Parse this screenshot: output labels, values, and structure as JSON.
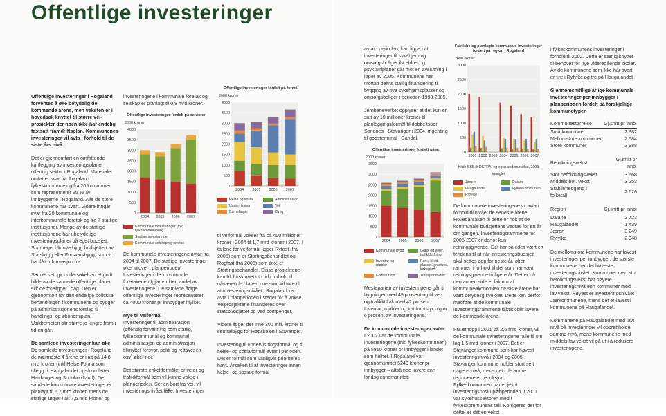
{
  "document": {
    "title": "Offentlige investeringer",
    "page_numbers": [
      "10",
      "11"
    ],
    "columns": [
      [
        "Offentlige investeringer i Rogaland forventes å øke betydelig de kommende årene, men veksten er i hovedsak knyttet til større vei-prosjekter der noen ikke har endelig fastsatt framdriftsplan. Kommunenes investeringer vil avta i forhold til de siste års nivå.",
        "Det er gjennomført en omfattende kartlegging av investeringsplaner i offentlig sektor i Rogaland. Materialet omfatter svar fra Rogaland fylkeskommune og fra 20 kommuner som representerer 95 % av innbyggerne i Rogaland. Alle de store kommunene har svart. Videre inngår svar fra 20 kommunale og interkommunale foretak og fra 7 statlige institusjoner. Mange av de statlige institusjonene har ubetydelige investeringsplaner på eget budsjett. Som regel blir nye bygg budsjettert av Statsbygg eller Forsvarsbygg, som vi har fått informasjon fra.",
        "Samlet sett gir undersøkelsen et godt bilde av de samlede offentlige planer slik de foreligger i dag. Den er gjennomført før den endelige politiske behandlingen i kommunene og bygger på administrasjonens forslag til handlings- og økonomiplan. Usikkerheten blir større jo lengre fram i tid en går.",
        "De samlede investeringer kan øke",
        "De samlede investeringer i Rogaland de nærmeste 4 årene er i alt på 14,8 mrd kroner (inkl Helse Fonna som i tillegg til Haugalandet også omfatter Hardanger og Sunnhordland). De samlede kommunale investeringer er planlagt til 6,7 mrd kroner, mens de statlige utgjør i alt 7,5 mrd kroner og"
      ],
      [
        "investeringene i kommunale foretak og selskap er planlagt til 0,8 mrd kroner.",
        "De kommunale investeringene avtar fra 2004 til 2007. De statlige investeringer øker utover i planperioden. Investeringer i de kommunale foretakene utgjør en liten andel av investeringene. De samlede årlige offentlige investeringer representerer ca 4000 kroner pr innbygger i fylket.",
        "Mye til veiformål",
        "Investeringer til administrasjon (offentlig forvaltning som statlig, fylkeskommunal og kommunal administrasjon og administrasjon tilknyttet forsvar, politi og rettsvesen osv) øker noe.",
        "Det største enkeltformålet er veier og trafikkformål som vil kunne vokse i planperioden. Ser en bort fra vei, vil investeringsnivået falle. Investeringer"
      ],
      [
        "til veiformål vokser fra ca 400 millioner kroner i 2004 til 1,7 mrd kroner i 2007. I tallene for veiformål ligger Ryfast (fra 2005) som er Stortingsbehandlet og Rogfast (fra 2006) som ikke er Stortingsbehandlet. Disse prosjektene kan bli forskjøvet ut i tid i forhold til nåværende planer, noe som vil føre til at investeringsnivået i Rogaland kan avta i planperioden i stedet for å vokse. Veiprosjektene finansieres over statsbudsjettet og ved bompenger.",
        "Videre ligger det inne 300 mill. kroner til sentralbygg for Høgskolen i Stavanger.",
        "Investering til undervisningsformål og til helse- og sosialformål avtar i perioden. Det er formål som vanligvis prioriteres høyt. Årsaken til at investeringer innen helse- og sosiale formål"
      ],
      [
        "avtar i perioden, kan ligge i at investeringer til sykehjem og omsorgsboliger iht eldre- og psykiatriplaner går mot en avslutning i løpet av 2005. Kommunene har mottatt delvis statlig finansiering til bygging av nye sykehjemsplasser og omsorgsboliger i perioden 1998-2005.",
        "Jernbaneverket opplyser at det kun er satt av 10 millioner kroner til planleggingsformål til dobbeltspor Sandnes - Stavanger i 2004, ingenting til godsterminal i Gandal.",
        "Mesteparten av investeringene går til bygninger med 45 prosent og til vei- og trafikktiltak med 42 prosent. Inventar, møbler og kontorutstyr utgjør 6 prosent av investeringene.",
        "De kommunale investeringer avtar",
        "I 2002 var de kommunale investeringene (inkl fylkeskommunen) på 5910 kroner pr innbygger i landet som helhet. I Rogaland var gjennomsnittet 5249 kroner pr innbygger – altså noe lavere enn landsgjennomsnittet."
      ],
      [
        "De kommunale investeringene vil avta i forhold til nivået de seneste årene. Hovedårsaken til dette er nok at de kommunale budsjettene vedtas for ett år om gangen. Investeringsrammene for 2005-2007 er derfor kun retningsgivende. Det har således vært en tendens til at når investeringsbudsjett skal settes opp for neste år, øker rammen i forhold til det som har vært retningsgivende tidligere år. Det er på den annen side et faktum at kommuneøkonomien de siste årene har vært betydelig svekket. Dette kan derfor medføre at de kommunale investeringsrammene faktisk blir lavere de kommende årene.",
        "Fra et topp i 2001 på 2,6 mrd kroner, vil de kommunale investeringene falle til om lag 1,5 mrd kroner i 2007. Det er Stavanger kommune som har høyest investeringsnivå i 2004 og 2005. Stavanger kommune holder stort sett dagens nivå, mens det i de andre regionene er reduksjon. Fylkeskommunen har et jevnt investeringsnivå i planperioden. I 2001 var sykehussektoren med i fylkeskommunens tall. Korrigeres det for dette, er det en vekst"
      ],
      [
        "i fylkeskommunens investeringer i forhold til 2002. Dette er særlig knyttet til behovet for nye videregående skoler. Av de kommunene som ikke har svart, er fire i Ryfylke og tre på Haugalandet",
        "Gjennomsnittlige årlige kommunale investeringer per innbygger i planperioden fordelt på forskjellige kommunetyper",
        "De mellomstore kommunene har lavest investeringer per innbygger, de største kommunene har det høyeste investeringsnivået. Kommuner med stor befolkningsvekst har høyere investeringsnivå enn kommuner med lav vekst. Høyest er investeringsnivået i Jærkommunene, mens det er lavest i kommunene på Haugalandet.",
        "Kommunene på Haugalandet med lavt nivå på investeringer vil opprettholde samme nivå, mens kommunene med middels lav vekst vil gå ut i å redusere investeringene."
      ]
    ],
    "tables": [
      {
        "header": [
          "Kommunestørrelse",
          "Gj.snitt pr innb."
        ],
        "rows": [
          [
            "Små kommuner",
            "2 982"
          ],
          [
            "Mellomstore kommuner",
            "2 584"
          ],
          [
            "Store kommuner",
            "3 988"
          ]
        ]
      },
      {
        "header": [
          "Befolkningsvekst",
          "Gj.snitt pr innb."
        ],
        "rows": [
          [
            "Stor befolkningsvekst",
            "3 668"
          ],
          [
            "Middels bef. vekst",
            "3 253"
          ],
          [
            "Stabilt/nedgang i folketall",
            "2 626"
          ]
        ]
      },
      {
        "header": [
          "Region",
          "Gj.snitt pr innb."
        ],
        "rows": [
          [
            "Dalane",
            "2 723"
          ],
          [
            "Haugalandet",
            "1 439"
          ],
          [
            "Jæren",
            "3 249"
          ],
          [
            "Ryfylke",
            "2 948"
          ]
        ]
      }
    ]
  },
  "chart_data": [
    {
      "type": "bar",
      "stacked": true,
      "title": "Offentlige investeringer fordelt på sektorer",
      "y_label": "2000 kroner",
      "categories": [
        "2004",
        "2005",
        "2006",
        "2007"
      ],
      "ylim": [
        0,
        4000
      ],
      "yticks": [
        0,
        500,
        1000,
        1500,
        2000,
        2500,
        3000,
        3500,
        4000
      ],
      "series": [
        {
          "name": "Kommunale investeringer (inkl. fylkeskommunen)",
          "color": "#b8312f",
          "values": [
            1700,
            1600,
            1500,
            1400
          ]
        },
        {
          "name": "Statlige investeringer",
          "color": "#7fa33a",
          "values": [
            1100,
            1100,
            1600,
            2100
          ]
        },
        {
          "name": "Kommunale selskap og foretak",
          "color": "#eba73d",
          "values": [
            200,
            200,
            200,
            200
          ]
        }
      ]
    },
    {
      "type": "bar",
      "stacked": true,
      "title": "Offentlige investeringer fordelt på formål",
      "y_label": "2000 kroner",
      "categories": [
        "2004",
        "2005",
        "2006",
        "2007"
      ],
      "ylim": [
        0,
        4000
      ],
      "yticks": [
        0,
        500,
        1000,
        1500,
        2000,
        2500,
        3000,
        3500,
        4000
      ],
      "series": [
        {
          "name": "Helse og sosial",
          "color": "#c0392b",
          "values": [
            700,
            500,
            400,
            350
          ]
        },
        {
          "name": "Administrasjon",
          "color": "#6a9a3a",
          "values": [
            500,
            550,
            600,
            650
          ]
        },
        {
          "name": "Undervisning",
          "color": "#e6c440",
          "values": [
            900,
            800,
            600,
            500
          ]
        },
        {
          "name": "Vei",
          "color": "#5a7fb0",
          "values": [
            400,
            800,
            1300,
            1700
          ]
        },
        {
          "name": "Barnehager",
          "color": "#e8893a",
          "values": [
            150,
            100,
            80,
            80
          ]
        },
        {
          "name": "Øvrig",
          "color": "#8a6a9a",
          "values": [
            350,
            300,
            320,
            370
          ]
        }
      ]
    },
    {
      "type": "bar",
      "stacked": true,
      "title": "Offentlige investeringer fordelt på art",
      "y_label": "2000 kroner",
      "categories": [
        "2004",
        "2005",
        "2006",
        "2007"
      ],
      "ylim": [
        0,
        3500
      ],
      "yticks": [
        0,
        500,
        1000,
        1500,
        2000,
        2500,
        3000,
        3500
      ],
      "series": [
        {
          "name": "Kommunale bygg",
          "color": "#b8312f",
          "values": [
            1500,
            1400,
            1300,
            1200
          ]
        },
        {
          "name": "Gater og veier, trafikkledning",
          "color": "#6a9a3a",
          "values": [
            700,
            900,
            1100,
            1500
          ]
        },
        {
          "name": "Inventar og møbler",
          "color": "#e6c440",
          "values": [
            100,
            100,
            100,
            100
          ]
        },
        {
          "name": "Park, idrett, plasser, gravlund, kirkegård",
          "color": "#5a7fb0",
          "values": [
            150,
            150,
            150,
            150
          ]
        },
        {
          "name": "Kontorutstyr",
          "color": "#e8893a",
          "values": [
            80,
            80,
            80,
            80
          ]
        },
        {
          "name": "Transportmidler",
          "color": "#8a6a9a",
          "values": [
            60,
            60,
            60,
            60
          ]
        }
      ]
    },
    {
      "type": "bar",
      "stacked": false,
      "title": "Faktiske og planlagte kommunale investeringer fordelt på region i Rogaland",
      "y_label": "2000 kroner",
      "source": "Kilde SSB, KOSTRA, og egen undersøkelse, 2003 mangler",
      "categories": [
        "2001",
        "2002",
        "2003",
        "2004",
        "2005",
        "2006",
        "2007"
      ],
      "ylim": [
        0,
        3000
      ],
      "yticks": [
        0,
        500,
        1000,
        1500,
        2000,
        2500,
        3000
      ],
      "series": [
        {
          "name": "Jæren",
          "color": "#b8312f",
          "values": [
            2000,
            1900,
            null,
            1700,
            1600,
            1300,
            1200
          ]
        },
        {
          "name": "Dalane",
          "color": "#6a9a3a",
          "values": [
            150,
            140,
            null,
            130,
            120,
            100,
            90
          ]
        },
        {
          "name": "Haugalandet",
          "color": "#e6c440",
          "values": [
            600,
            550,
            null,
            500,
            450,
            400,
            350
          ]
        },
        {
          "name": "Fylkeskommunen",
          "color": "#5a7fb0",
          "values": [
            700,
            400,
            null,
            450,
            450,
            450,
            450
          ]
        },
        {
          "name": "Ryfylke",
          "color": "#e8893a",
          "values": [
            200,
            180,
            null,
            150,
            140,
            120,
            110
          ]
        }
      ]
    }
  ]
}
